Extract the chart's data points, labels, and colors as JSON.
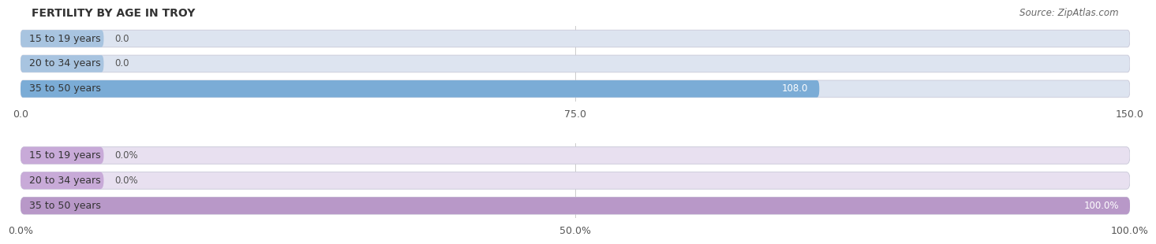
{
  "title": "FERTILITY BY AGE IN TROY",
  "source": "Source: ZipAtlas.com",
  "chart1": {
    "categories": [
      "15 to 19 years",
      "20 to 34 years",
      "35 to 50 years"
    ],
    "values": [
      0.0,
      0.0,
      108.0
    ],
    "xlim": [
      0,
      150
    ],
    "xticks": [
      0.0,
      75.0,
      150.0
    ],
    "xtick_labels": [
      "0.0",
      "75.0",
      "150.0"
    ],
    "bar_color": "#7bacd6",
    "bar_bg_color": "#dde4f0",
    "bar_mini_color": "#a8c4e0"
  },
  "chart2": {
    "categories": [
      "15 to 19 years",
      "20 to 34 years",
      "35 to 50 years"
    ],
    "values": [
      0.0,
      0.0,
      100.0
    ],
    "xlim": [
      0,
      100
    ],
    "xticks": [
      0.0,
      50.0,
      100.0
    ],
    "xtick_labels": [
      "0.0%",
      "50.0%",
      "100.0%"
    ],
    "bar_color": "#b898c8",
    "bar_bg_color": "#e8e0f0",
    "bar_mini_color": "#c8aad8"
  },
  "bg_color": "#ffffff",
  "title_fontsize": 10,
  "source_fontsize": 8.5,
  "label_fontsize": 9,
  "category_fontsize": 9,
  "value_fontsize": 8.5
}
